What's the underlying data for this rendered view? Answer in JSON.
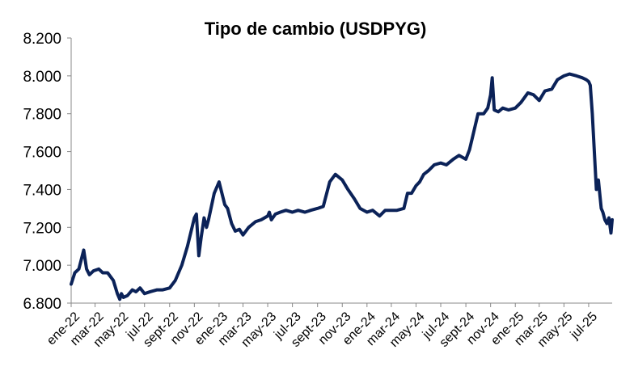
{
  "chart_data": {
    "type": "line",
    "title": "Tipo de cambio (USDPYG)",
    "xlabel": "",
    "ylabel": "",
    "ylim": [
      6800,
      8200
    ],
    "yticks": [
      6800,
      7000,
      7200,
      7400,
      7600,
      7800,
      8000,
      8200
    ],
    "ytick_labels": [
      "6.800",
      "7.000",
      "7.200",
      "7.400",
      "7.600",
      "7.800",
      "8.000",
      "8.200"
    ],
    "xlim": [
      "2022-01-01",
      "2025-08-28"
    ],
    "xticks": [
      "2022-01-01",
      "2022-03-01",
      "2022-05-01",
      "2022-07-01",
      "2022-09-01",
      "2022-11-01",
      "2023-01-01",
      "2023-03-01",
      "2023-05-01",
      "2023-07-01",
      "2023-09-01",
      "2023-11-01",
      "2024-01-01",
      "2024-03-01",
      "2024-05-01",
      "2024-07-01",
      "2024-09-01",
      "2024-11-01",
      "2025-01-01",
      "2025-03-01",
      "2025-05-01",
      "2025-07-01"
    ],
    "xtick_labels": [
      "ene-22",
      "mar-22",
      "may-22",
      "jul-22",
      "sept-22",
      "nov-22",
      "ene-23",
      "mar-23",
      "may-23",
      "jul-23",
      "sept-23",
      "nov-23",
      "ene-24",
      "mar-24",
      "may-24",
      "jul-24",
      "sept-24",
      "nov-24",
      "ene-25",
      "mar-25",
      "may-25",
      "jul-25"
    ],
    "grid": false,
    "legend": "none",
    "color": "#0b2258",
    "series": [
      {
        "x": [
          "2022-01-01",
          "2022-01-10",
          "2022-01-20",
          "2022-02-01",
          "2022-02-08",
          "2022-02-15",
          "2022-02-25",
          "2022-03-10",
          "2022-03-20",
          "2022-04-01",
          "2022-04-15",
          "2022-04-25",
          "2022-05-01",
          "2022-05-05",
          "2022-05-10",
          "2022-05-20",
          "2022-06-01",
          "2022-06-10",
          "2022-06-20",
          "2022-07-01",
          "2022-07-15",
          "2022-08-01",
          "2022-08-15",
          "2022-09-01",
          "2022-09-15",
          "2022-10-01",
          "2022-10-15",
          "2022-11-01",
          "2022-11-06",
          "2022-11-12",
          "2022-11-18",
          "2022-11-25",
          "2022-12-01",
          "2022-12-06",
          "2022-12-12",
          "2022-12-20",
          "2023-01-01",
          "2023-01-08",
          "2023-01-15",
          "2023-01-22",
          "2023-02-01",
          "2023-02-10",
          "2023-02-20",
          "2023-03-01",
          "2023-03-15",
          "2023-04-01",
          "2023-04-15",
          "2023-05-01",
          "2023-05-05",
          "2023-05-10",
          "2023-05-20",
          "2023-06-01",
          "2023-06-15",
          "2023-07-01",
          "2023-07-15",
          "2023-08-01",
          "2023-08-15",
          "2023-09-01",
          "2023-09-15",
          "2023-10-01",
          "2023-10-15",
          "2023-11-01",
          "2023-11-15",
          "2023-12-01",
          "2023-12-15",
          "2024-01-01",
          "2024-01-15",
          "2024-02-01",
          "2024-02-15",
          "2024-03-01",
          "2024-03-15",
          "2024-04-01",
          "2024-04-10",
          "2024-04-20",
          "2024-05-01",
          "2024-05-10",
          "2024-05-20",
          "2024-06-01",
          "2024-06-15",
          "2024-07-01",
          "2024-07-15",
          "2024-08-01",
          "2024-08-15",
          "2024-09-01",
          "2024-09-10",
          "2024-09-20",
          "2024-10-01",
          "2024-10-15",
          "2024-10-25",
          "2024-11-01",
          "2024-11-05",
          "2024-11-10",
          "2024-11-20",
          "2024-12-01",
          "2024-12-15",
          "2025-01-01",
          "2025-01-15",
          "2025-02-01",
          "2025-02-15",
          "2025-03-01",
          "2025-03-15",
          "2025-04-01",
          "2025-04-15",
          "2025-05-01",
          "2025-05-15",
          "2025-06-01",
          "2025-06-15",
          "2025-06-25",
          "2025-07-01",
          "2025-07-05",
          "2025-07-10",
          "2025-07-15",
          "2025-07-20",
          "2025-07-25",
          "2025-08-01",
          "2025-08-05",
          "2025-08-10",
          "2025-08-15",
          "2025-08-20",
          "2025-08-25",
          "2025-08-28"
        ],
        "y": [
          6900,
          6960,
          6980,
          7080,
          6980,
          6950,
          6970,
          6980,
          6960,
          6960,
          6920,
          6850,
          6820,
          6850,
          6830,
          6840,
          6870,
          6860,
          6880,
          6850,
          6860,
          6870,
          6870,
          6880,
          6920,
          7000,
          7100,
          7250,
          7270,
          7050,
          7150,
          7250,
          7200,
          7240,
          7300,
          7380,
          7440,
          7380,
          7320,
          7300,
          7220,
          7180,
          7190,
          7160,
          7200,
          7230,
          7240,
          7260,
          7280,
          7240,
          7270,
          7280,
          7290,
          7280,
          7290,
          7280,
          7290,
          7300,
          7310,
          7440,
          7480,
          7450,
          7400,
          7350,
          7300,
          7280,
          7290,
          7260,
          7290,
          7290,
          7290,
          7300,
          7380,
          7380,
          7420,
          7440,
          7480,
          7500,
          7530,
          7540,
          7530,
          7560,
          7580,
          7560,
          7610,
          7700,
          7800,
          7800,
          7830,
          7900,
          7990,
          7820,
          7810,
          7830,
          7820,
          7830,
          7860,
          7910,
          7900,
          7870,
          7920,
          7930,
          7980,
          8000,
          8010,
          8000,
          7990,
          7980,
          7970,
          7950,
          7800,
          7600,
          7400,
          7450,
          7300,
          7280,
          7240,
          7220,
          7250,
          7170,
          7240
        ]
      }
    ]
  }
}
